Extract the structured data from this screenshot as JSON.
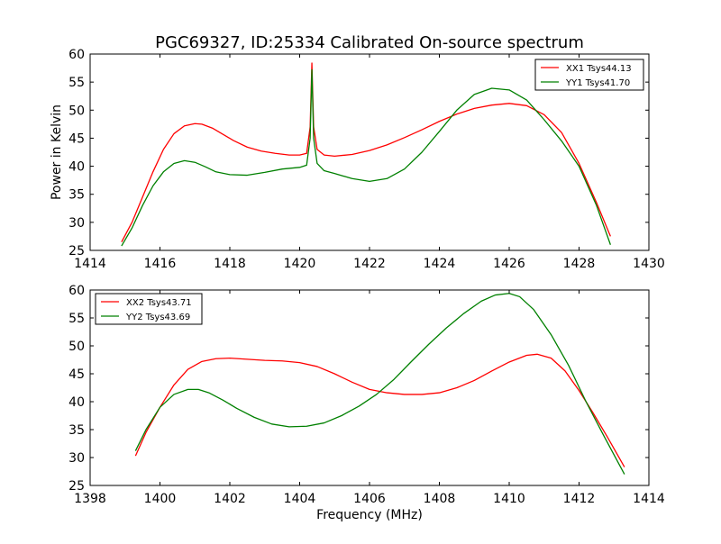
{
  "figure": {
    "title": "PGC69327, ID:25334 Calibrated On-source spectrum"
  },
  "chart_data": [
    {
      "type": "line",
      "title": "PGC69327, ID:25334 Calibrated On-source spectrum",
      "xlabel": "",
      "ylabel": "Power in Kelvin",
      "xlim": [
        1414,
        1430
      ],
      "ylim": [
        25,
        60
      ],
      "xticks": [
        1414,
        1416,
        1418,
        1420,
        1422,
        1424,
        1426,
        1428,
        1430
      ],
      "yticks": [
        25,
        30,
        35,
        40,
        45,
        50,
        55,
        60
      ],
      "grid": false,
      "legend_position": "top-right",
      "series": [
        {
          "name": "XX1 Tsys44.13",
          "color": "#ff0000",
          "x": [
            1414.9,
            1415.2,
            1415.5,
            1415.8,
            1416.1,
            1416.4,
            1416.7,
            1417.0,
            1417.2,
            1417.5,
            1417.8,
            1418.1,
            1418.5,
            1418.9,
            1419.3,
            1419.7,
            1420.0,
            1420.2,
            1420.3,
            1420.35,
            1420.4,
            1420.5,
            1420.7,
            1421.0,
            1421.5,
            1422.0,
            1422.5,
            1423.0,
            1423.5,
            1424.0,
            1424.5,
            1425.0,
            1425.5,
            1426.0,
            1426.5,
            1427.0,
            1427.5,
            1428.0,
            1428.5,
            1428.9
          ],
          "y": [
            26.5,
            30.0,
            34.5,
            39.0,
            43.0,
            45.8,
            47.2,
            47.6,
            47.5,
            46.8,
            45.7,
            44.6,
            43.4,
            42.7,
            42.3,
            42.0,
            42.0,
            42.3,
            47.0,
            58.4,
            47.0,
            43.0,
            42.0,
            41.8,
            42.1,
            42.8,
            43.8,
            45.1,
            46.5,
            48.0,
            49.3,
            50.3,
            50.9,
            51.2,
            50.8,
            49.2,
            46.0,
            40.5,
            33.5,
            27.5
          ]
        },
        {
          "name": "YY1 Tsys41.70",
          "color": "#008000",
          "x": [
            1414.9,
            1415.2,
            1415.5,
            1415.8,
            1416.1,
            1416.4,
            1416.7,
            1417.0,
            1417.3,
            1417.6,
            1418.0,
            1418.5,
            1419.0,
            1419.5,
            1420.0,
            1420.2,
            1420.3,
            1420.35,
            1420.4,
            1420.5,
            1420.7,
            1421.0,
            1421.5,
            1422.0,
            1422.5,
            1423.0,
            1423.5,
            1424.0,
            1424.5,
            1425.0,
            1425.5,
            1426.0,
            1426.5,
            1427.0,
            1427.5,
            1428.0,
            1428.5,
            1428.9
          ],
          "y": [
            25.8,
            29.0,
            33.0,
            36.5,
            39.0,
            40.5,
            41.0,
            40.7,
            39.9,
            39.0,
            38.5,
            38.4,
            38.9,
            39.5,
            39.8,
            40.2,
            45.0,
            57.2,
            45.0,
            40.5,
            39.2,
            38.7,
            37.8,
            37.3,
            37.8,
            39.5,
            42.5,
            46.2,
            50.0,
            52.8,
            53.9,
            53.6,
            51.8,
            48.3,
            44.5,
            40.0,
            33.0,
            26.0
          ]
        }
      ]
    },
    {
      "type": "line",
      "title": "",
      "xlabel": "Frequency (MHz)",
      "ylabel": "",
      "xlim": [
        1398,
        1414
      ],
      "ylim": [
        25,
        60
      ],
      "xticks": [
        1398,
        1400,
        1402,
        1404,
        1406,
        1408,
        1410,
        1412,
        1414
      ],
      "yticks": [
        25,
        30,
        35,
        40,
        45,
        50,
        55,
        60
      ],
      "grid": false,
      "legend_position": "top-left",
      "series": [
        {
          "name": "XX2 Tsys43.71",
          "color": "#ff0000",
          "x": [
            1399.3,
            1399.6,
            1400.0,
            1400.4,
            1400.8,
            1401.2,
            1401.6,
            1402.0,
            1402.5,
            1403.0,
            1403.5,
            1404.0,
            1404.5,
            1405.0,
            1405.5,
            1406.0,
            1406.5,
            1407.0,
            1407.5,
            1408.0,
            1408.5,
            1409.0,
            1409.5,
            1410.0,
            1410.5,
            1410.8,
            1411.2,
            1411.6,
            1412.0,
            1412.4,
            1412.8,
            1413.3
          ],
          "y": [
            30.3,
            34.5,
            39.0,
            43.0,
            45.8,
            47.2,
            47.7,
            47.8,
            47.6,
            47.4,
            47.3,
            47.0,
            46.3,
            45.0,
            43.5,
            42.2,
            41.6,
            41.3,
            41.3,
            41.6,
            42.5,
            43.8,
            45.5,
            47.1,
            48.3,
            48.5,
            47.8,
            45.5,
            42.0,
            38.0,
            33.8,
            28.3
          ]
        },
        {
          "name": "YY2 Tsys43.69",
          "color": "#008000",
          "x": [
            1399.3,
            1399.6,
            1400.0,
            1400.4,
            1400.8,
            1401.1,
            1401.4,
            1401.8,
            1402.2,
            1402.7,
            1403.2,
            1403.7,
            1404.2,
            1404.7,
            1405.2,
            1405.7,
            1406.2,
            1406.7,
            1407.2,
            1407.7,
            1408.2,
            1408.7,
            1409.2,
            1409.6,
            1410.0,
            1410.3,
            1410.7,
            1411.2,
            1411.7,
            1412.2,
            1412.7,
            1413.3
          ],
          "y": [
            31.2,
            35.0,
            39.0,
            41.3,
            42.2,
            42.2,
            41.6,
            40.3,
            38.8,
            37.2,
            36.0,
            35.5,
            35.6,
            36.2,
            37.5,
            39.2,
            41.3,
            44.0,
            47.2,
            50.3,
            53.2,
            55.8,
            58.0,
            59.1,
            59.4,
            58.8,
            56.5,
            52.0,
            46.5,
            40.0,
            34.0,
            27.0
          ]
        }
      ]
    }
  ]
}
